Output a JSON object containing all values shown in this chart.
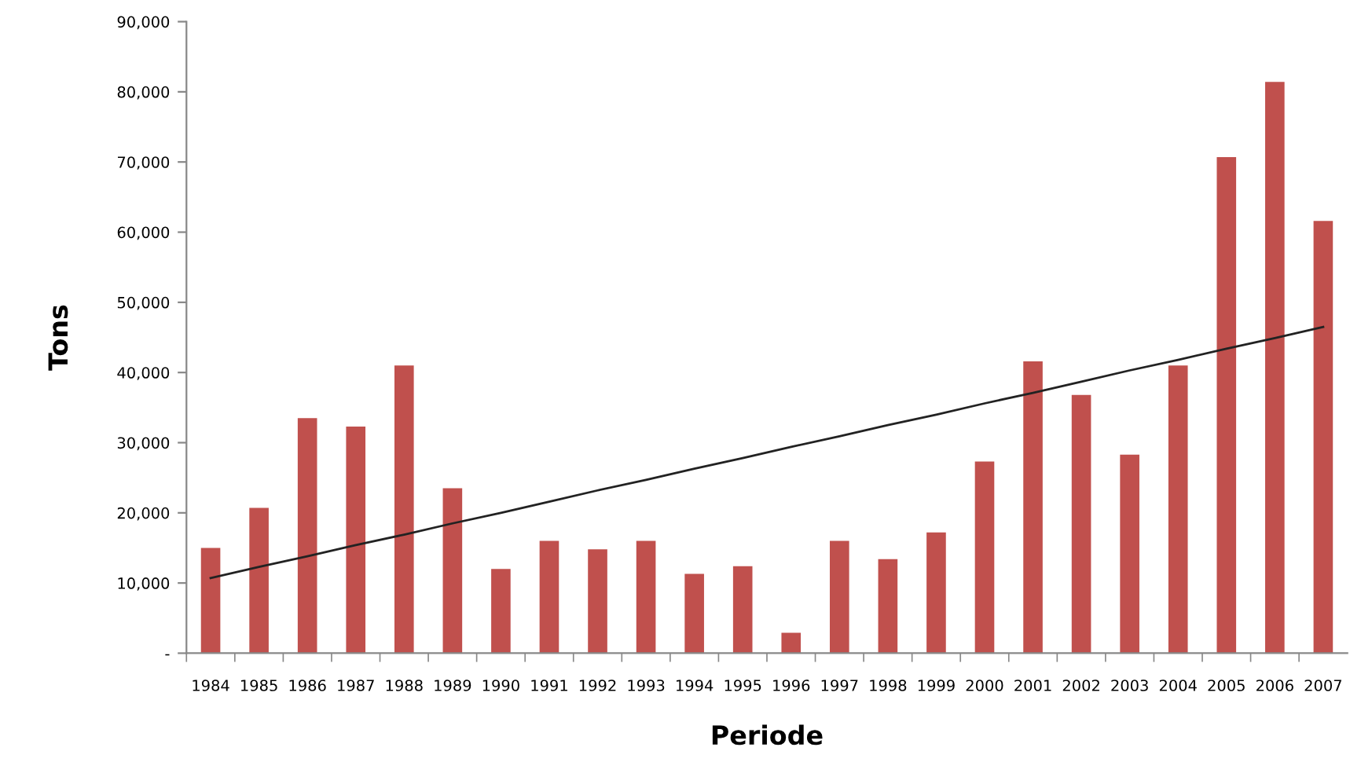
{
  "chart_data": {
    "type": "bar",
    "xlabel": "Periode",
    "ylabel": "Tons",
    "categories": [
      "1984",
      "1985",
      "1986",
      "1987",
      "1988",
      "1989",
      "1990",
      "1991",
      "1992",
      "1993",
      "1994",
      "1995",
      "1996",
      "1997",
      "1998",
      "1999",
      "2000",
      "2001",
      "2002",
      "2003",
      "2004",
      "2005",
      "2006",
      "2007"
    ],
    "series": [
      {
        "color": "#c0504d",
        "values": [
          15000,
          20700,
          33500,
          32300,
          41000,
          23500,
          12000,
          16000,
          14800,
          16000,
          11300,
          12400,
          2900,
          16000,
          13400,
          17200,
          27300,
          41600,
          36800,
          28300,
          41000,
          70700,
          81400,
          61600
        ]
      },
      {
        "type": "line",
        "color": "#222222",
        "values": [
          10700,
          12300,
          13800,
          15400,
          16900,
          18500,
          20000,
          21600,
          23200,
          24700,
          26300,
          27800,
          29400,
          30900,
          32500,
          34000,
          35600,
          37100,
          38700,
          40300,
          41800,
          43400,
          44900,
          46500
        ]
      }
    ],
    "ylim": [
      0,
      90000
    ],
    "yticks": [
      {
        "value": 0,
        "label": "-"
      },
      {
        "value": 10000,
        "label": "10,000"
      },
      {
        "value": 20000,
        "label": "20,000"
      },
      {
        "value": 30000,
        "label": "30,000"
      },
      {
        "value": 40000,
        "label": "40,000"
      },
      {
        "value": 50000,
        "label": "50,000"
      },
      {
        "value": 60000,
        "label": "60,000"
      },
      {
        "value": 70000,
        "label": "70,000"
      },
      {
        "value": 80000,
        "label": "80,000"
      },
      {
        "value": 90000,
        "label": "90,000"
      }
    ],
    "grid": false,
    "legend": false
  }
}
